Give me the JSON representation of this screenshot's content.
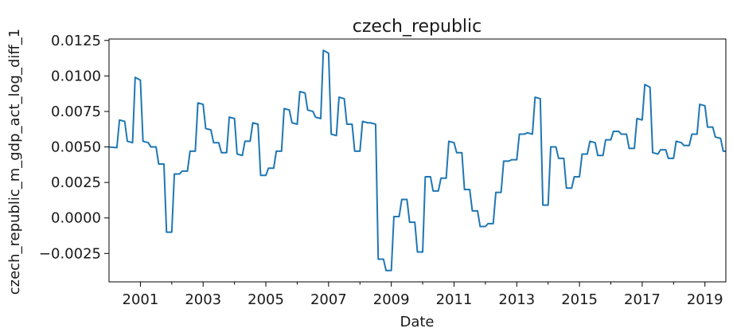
{
  "chart_data": {
    "type": "line",
    "title": "czech_republic",
    "xlabel": "Date",
    "ylabel": "czech_republic_m_gdp_act_log_diff_1",
    "xlim": [
      "2000-01",
      "2019-09"
    ],
    "ylim": [
      -0.0045,
      0.0126
    ],
    "yticks": [
      -0.0025,
      0.0,
      0.0025,
      0.005,
      0.0075,
      0.01,
      0.0125
    ],
    "ytick_labels": [
      "−0.0025",
      "0.0000",
      "0.0025",
      "0.0050",
      "0.0075",
      "0.0100",
      "0.0125"
    ],
    "xticks_major": [
      "2001-01",
      "2003-01",
      "2005-01",
      "2007-01",
      "2009-01",
      "2011-01",
      "2013-01",
      "2015-01",
      "2017-01",
      "2019-01"
    ],
    "xtick_labels": [
      "2001",
      "2003",
      "2005",
      "2007",
      "2009",
      "2011",
      "2013",
      "2015",
      "2017",
      "2019"
    ],
    "xticks_minor": [
      "2002-01",
      "2004-01",
      "2006-01",
      "2008-01",
      "2010-01",
      "2012-01",
      "2014-01",
      "2016-01",
      "2018-01"
    ],
    "grid": false,
    "legend": "none",
    "series": [
      {
        "color": "#1f77b4",
        "points": [
          [
            "2000-01",
            0.005
          ],
          [
            "2000-04",
            0.00495
          ],
          [
            "2000-05",
            0.0069
          ],
          [
            "2000-07",
            0.0068
          ],
          [
            "2000-08",
            0.0054
          ],
          [
            "2000-10",
            0.0053
          ],
          [
            "2000-11",
            0.0099
          ],
          [
            "2001-01",
            0.0097
          ],
          [
            "2001-02",
            0.0054
          ],
          [
            "2001-04",
            0.0053
          ],
          [
            "2001-05",
            0.005
          ],
          [
            "2001-07",
            0.005
          ],
          [
            "2001-08",
            0.0038
          ],
          [
            "2001-10",
            0.0038
          ],
          [
            "2001-11",
            -0.001
          ],
          [
            "2002-01",
            -0.001
          ],
          [
            "2002-02",
            0.0031
          ],
          [
            "2002-04",
            0.0031
          ],
          [
            "2002-05",
            0.0033
          ],
          [
            "2002-07",
            0.0033
          ],
          [
            "2002-08",
            0.0047
          ],
          [
            "2002-10",
            0.0047
          ],
          [
            "2002-11",
            0.0081
          ],
          [
            "2003-01",
            0.008
          ],
          [
            "2003-02",
            0.0063
          ],
          [
            "2003-04",
            0.0062
          ],
          [
            "2003-05",
            0.0053
          ],
          [
            "2003-07",
            0.0053
          ],
          [
            "2003-08",
            0.0046
          ],
          [
            "2003-10",
            0.0046
          ],
          [
            "2003-11",
            0.0071
          ],
          [
            "2004-01",
            0.007
          ],
          [
            "2004-02",
            0.0045
          ],
          [
            "2004-04",
            0.0044
          ],
          [
            "2004-05",
            0.0054
          ],
          [
            "2004-07",
            0.0054
          ],
          [
            "2004-08",
            0.0067
          ],
          [
            "2004-10",
            0.0066
          ],
          [
            "2004-11",
            0.003
          ],
          [
            "2005-01",
            0.003
          ],
          [
            "2005-02",
            0.0035
          ],
          [
            "2005-04",
            0.0035
          ],
          [
            "2005-05",
            0.0047
          ],
          [
            "2005-07",
            0.0047
          ],
          [
            "2005-08",
            0.0077
          ],
          [
            "2005-10",
            0.0076
          ],
          [
            "2005-11",
            0.0067
          ],
          [
            "2006-01",
            0.0066
          ],
          [
            "2006-02",
            0.0089
          ],
          [
            "2006-04",
            0.0088
          ],
          [
            "2006-05",
            0.0076
          ],
          [
            "2006-07",
            0.0075
          ],
          [
            "2006-08",
            0.0071
          ],
          [
            "2006-10",
            0.007
          ],
          [
            "2006-11",
            0.0118
          ],
          [
            "2007-01",
            0.0116
          ],
          [
            "2007-02",
            0.0059
          ],
          [
            "2007-04",
            0.0058
          ],
          [
            "2007-05",
            0.0085
          ],
          [
            "2007-07",
            0.0084
          ],
          [
            "2007-08",
            0.0066
          ],
          [
            "2007-10",
            0.0066
          ],
          [
            "2007-11",
            0.0047
          ],
          [
            "2008-01",
            0.0047
          ],
          [
            "2008-02",
            0.0068
          ],
          [
            "2008-04",
            0.0067
          ],
          [
            "2008-05",
            0.0067
          ],
          [
            "2008-07",
            0.0066
          ],
          [
            "2008-08",
            -0.0029
          ],
          [
            "2008-10",
            -0.0029
          ],
          [
            "2008-11",
            -0.0037
          ],
          [
            "2009-01",
            -0.0037
          ],
          [
            "2009-02",
            0.0001
          ],
          [
            "2009-04",
            0.0001
          ],
          [
            "2009-05",
            0.0013
          ],
          [
            "2009-07",
            0.0013
          ],
          [
            "2009-08",
            -0.0003
          ],
          [
            "2009-10",
            -0.0003
          ],
          [
            "2009-11",
            -0.0024
          ],
          [
            "2010-01",
            -0.0024
          ],
          [
            "2010-02",
            0.0029
          ],
          [
            "2010-04",
            0.0029
          ],
          [
            "2010-05",
            0.0019
          ],
          [
            "2010-07",
            0.0019
          ],
          [
            "2010-08",
            0.0028
          ],
          [
            "2010-10",
            0.0028
          ],
          [
            "2010-11",
            0.0054
          ],
          [
            "2011-01",
            0.0053
          ],
          [
            "2011-02",
            0.0046
          ],
          [
            "2011-04",
            0.0046
          ],
          [
            "2011-05",
            0.002
          ],
          [
            "2011-07",
            0.002
          ],
          [
            "2011-08",
            0.0005
          ],
          [
            "2011-10",
            0.0005
          ],
          [
            "2011-11",
            -0.0006
          ],
          [
            "2012-01",
            -0.0006
          ],
          [
            "2012-02",
            -0.0004
          ],
          [
            "2012-04",
            -0.0004
          ],
          [
            "2012-05",
            0.0018
          ],
          [
            "2012-07",
            0.0018
          ],
          [
            "2012-08",
            0.004
          ],
          [
            "2012-10",
            0.004
          ],
          [
            "2012-11",
            0.0041
          ],
          [
            "2013-01",
            0.0041
          ],
          [
            "2013-02",
            0.0059
          ],
          [
            "2013-04",
            0.0059
          ],
          [
            "2013-05",
            0.006
          ],
          [
            "2013-07",
            0.0059
          ],
          [
            "2013-08",
            0.0085
          ],
          [
            "2013-10",
            0.0084
          ],
          [
            "2013-11",
            0.0009
          ],
          [
            "2014-01",
            0.0009
          ],
          [
            "2014-02",
            0.005
          ],
          [
            "2014-04",
            0.005
          ],
          [
            "2014-05",
            0.0042
          ],
          [
            "2014-07",
            0.0042
          ],
          [
            "2014-08",
            0.0021
          ],
          [
            "2014-10",
            0.0021
          ],
          [
            "2014-11",
            0.0029
          ],
          [
            "2015-01",
            0.0029
          ],
          [
            "2015-02",
            0.0045
          ],
          [
            "2015-04",
            0.0045
          ],
          [
            "2015-05",
            0.0054
          ],
          [
            "2015-07",
            0.0053
          ],
          [
            "2015-08",
            0.0044
          ],
          [
            "2015-10",
            0.0044
          ],
          [
            "2015-11",
            0.0055
          ],
          [
            "2016-01",
            0.0055
          ],
          [
            "2016-02",
            0.0061
          ],
          [
            "2016-04",
            0.0061
          ],
          [
            "2016-05",
            0.0059
          ],
          [
            "2016-07",
            0.0059
          ],
          [
            "2016-08",
            0.0049
          ],
          [
            "2016-10",
            0.0049
          ],
          [
            "2016-11",
            0.007
          ],
          [
            "2017-01",
            0.0069
          ],
          [
            "2017-02",
            0.0094
          ],
          [
            "2017-04",
            0.0092
          ],
          [
            "2017-05",
            0.0046
          ],
          [
            "2017-07",
            0.0045
          ],
          [
            "2017-08",
            0.0048
          ],
          [
            "2017-10",
            0.0048
          ],
          [
            "2017-11",
            0.0042
          ],
          [
            "2018-01",
            0.0042
          ],
          [
            "2018-02",
            0.0054
          ],
          [
            "2018-04",
            0.0053
          ],
          [
            "2018-05",
            0.0051
          ],
          [
            "2018-07",
            0.0051
          ],
          [
            "2018-08",
            0.0059
          ],
          [
            "2018-10",
            0.0059
          ],
          [
            "2018-11",
            0.008
          ],
          [
            "2019-01",
            0.0079
          ],
          [
            "2019-02",
            0.0064
          ],
          [
            "2019-04",
            0.0064
          ],
          [
            "2019-05",
            0.0057
          ],
          [
            "2019-07",
            0.0056
          ],
          [
            "2019-08",
            0.0047
          ],
          [
            "2019-09",
            0.0047
          ]
        ]
      }
    ]
  }
}
